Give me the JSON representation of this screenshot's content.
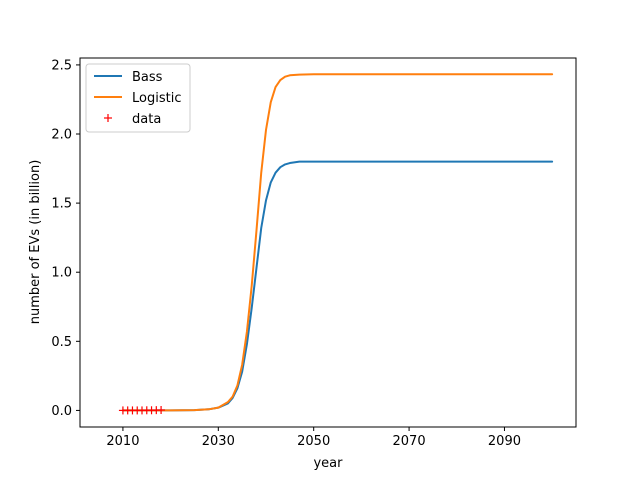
{
  "chart_data": {
    "type": "line",
    "xlabel": "year",
    "ylabel": "number of EVs (in billion)",
    "xlim": [
      2001,
      2105
    ],
    "ylim": [
      -0.12,
      2.55
    ],
    "xticks": [
      2010,
      2030,
      2050,
      2070,
      2090
    ],
    "yticks": [
      0.0,
      0.5,
      1.0,
      1.5,
      2.0,
      2.5
    ],
    "xtick_labels": [
      "2010",
      "2030",
      "2050",
      "2070",
      "2090"
    ],
    "ytick_labels": [
      "0.0",
      "0.5",
      "1.0",
      "1.5",
      "2.0",
      "2.5"
    ],
    "legend_position": "upper-left",
    "series": [
      {
        "name": "Bass",
        "color": "#1f77b4",
        "style": "line",
        "x": [
          2010,
          2015,
          2020,
          2025,
          2028,
          2030,
          2032,
          2033,
          2034,
          2035,
          2036,
          2037,
          2038,
          2039,
          2040,
          2041,
          2042,
          2043,
          2044,
          2045,
          2047,
          2050,
          2060,
          2080,
          2100
        ],
        "values": [
          0.0,
          0.0,
          0.0,
          0.002,
          0.008,
          0.02,
          0.05,
          0.09,
          0.16,
          0.28,
          0.48,
          0.74,
          1.03,
          1.32,
          1.52,
          1.65,
          1.72,
          1.76,
          1.78,
          1.79,
          1.8,
          1.8,
          1.8,
          1.8,
          1.8
        ]
      },
      {
        "name": "Logistic",
        "color": "#ff7f0e",
        "style": "line",
        "x": [
          2010,
          2015,
          2020,
          2025,
          2028,
          2030,
          2032,
          2033,
          2034,
          2035,
          2036,
          2037,
          2038,
          2039,
          2040,
          2041,
          2042,
          2043,
          2044,
          2045,
          2047,
          2050,
          2060,
          2080,
          2100
        ],
        "values": [
          0.0,
          0.0,
          0.0,
          0.002,
          0.008,
          0.02,
          0.06,
          0.1,
          0.18,
          0.33,
          0.57,
          0.9,
          1.3,
          1.72,
          2.03,
          2.23,
          2.34,
          2.39,
          2.415,
          2.425,
          2.43,
          2.432,
          2.432,
          2.432,
          2.432
        ]
      },
      {
        "name": "data",
        "color": "#ff0000",
        "style": "marker-plus",
        "x": [
          2010,
          2011,
          2012,
          2013,
          2014,
          2015,
          2016,
          2017,
          2018
        ],
        "values": [
          0.0,
          0.0,
          0.0,
          0.0,
          0.0,
          0.001,
          0.001,
          0.002,
          0.003
        ]
      }
    ]
  }
}
